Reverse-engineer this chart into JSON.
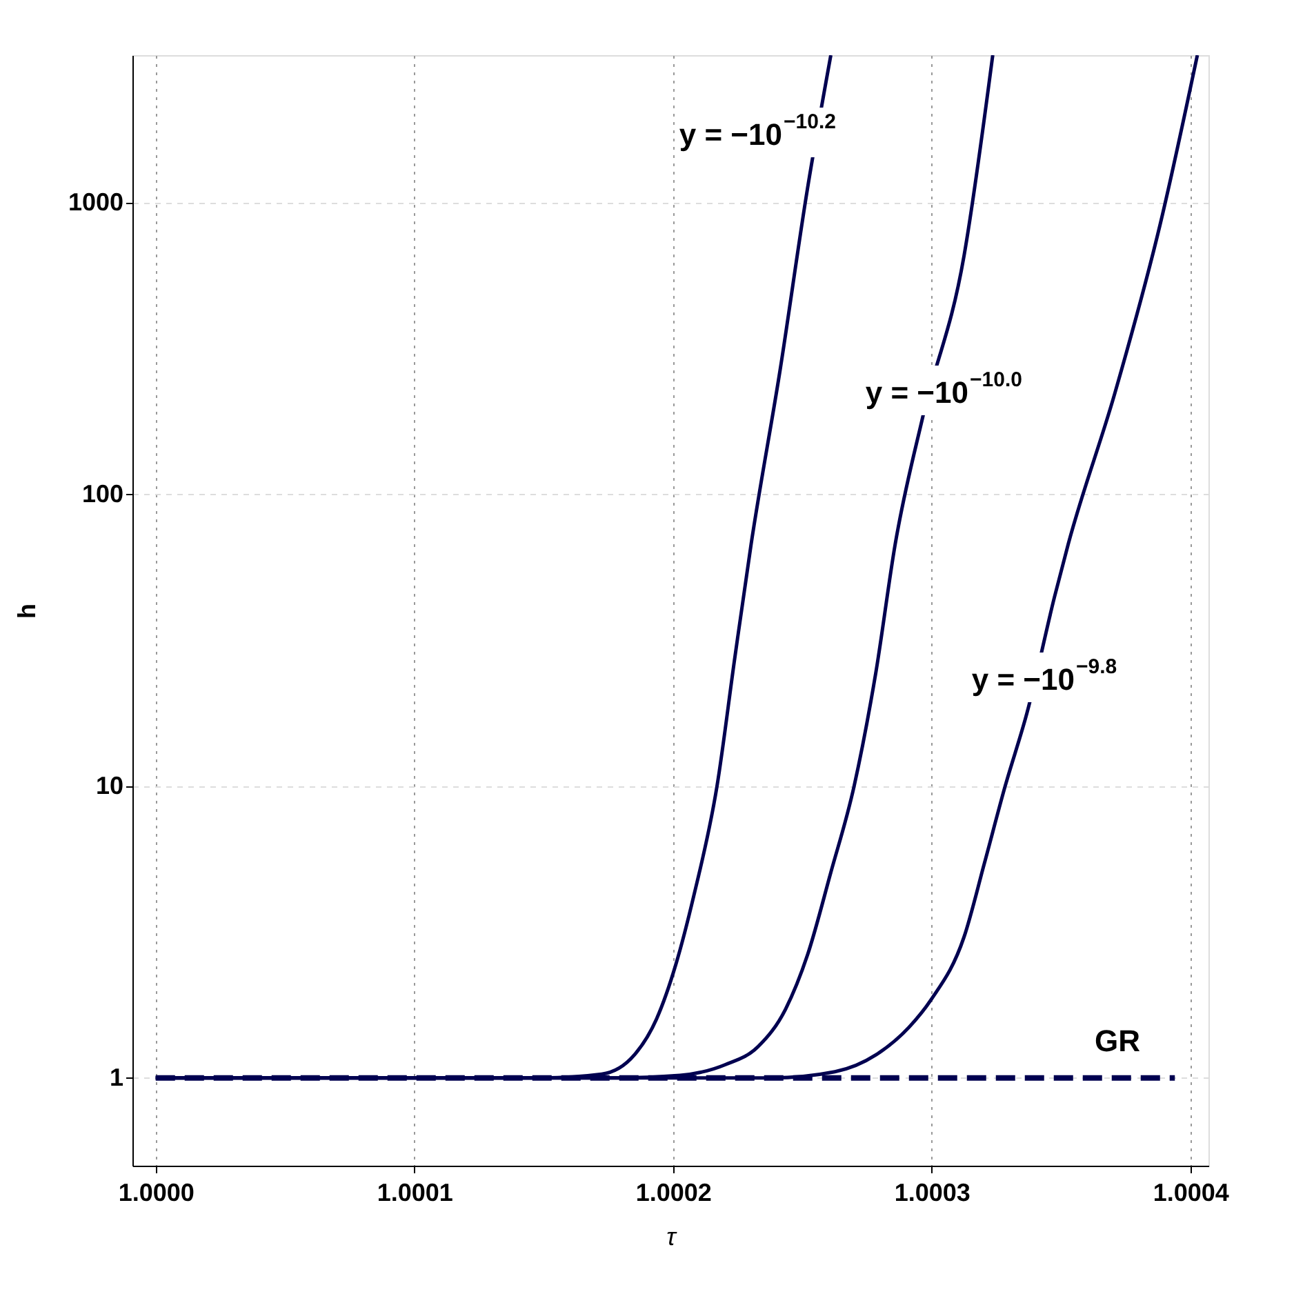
{
  "chart_data": {
    "type": "line",
    "xlabel": "τ",
    "ylabel": "h",
    "log": "y",
    "grid": true,
    "line_style": "solid",
    "xlim": [
      0.999991,
      1.000407
    ],
    "ylim": [
      0.5,
      3200
    ],
    "xticks": [
      {
        "value": 1.0,
        "label": "1.0000"
      },
      {
        "value": 1.0001,
        "label": "1.0001"
      },
      {
        "value": 1.0002,
        "label": "1.0002"
      },
      {
        "value": 1.0003,
        "label": "1.0003"
      },
      {
        "value": 1.0004,
        "label": "1.0004"
      }
    ],
    "yticks": [
      1,
      10,
      100,
      1000
    ],
    "series": [
      {
        "color": "#000050",
        "x": [
          1.0,
          1.00014,
          1.0001496,
          1.0001724,
          1.0001851,
          1.0001936,
          1.0002011,
          1.000208,
          1.000217,
          1.0002239,
          1.0002302,
          1.0002414,
          1.000252,
          1.000261
        ],
        "values": [
          1,
          1,
          1.0,
          1.03,
          1.2,
          1.59,
          2.45,
          4.2,
          10,
          27.6,
          67.6,
          267,
          1120,
          3200
        ]
      },
      {
        "color": "#000050",
        "x": [
          1.0,
          1.00018,
          1.0002027,
          1.0002202,
          1.0002329,
          1.0002435,
          1.000252,
          1.000261,
          1.00027,
          1.0002785,
          1.0002859,
          1.0002966,
          1.0003125,
          1.0003236
        ],
        "values": [
          1,
          1,
          1.02,
          1.11,
          1.28,
          1.72,
          2.64,
          5.06,
          10,
          24.8,
          67.6,
          185,
          657,
          3200
        ]
      },
      {
        "color": "#000050",
        "x": [
          1.0,
          1.00022,
          1.0002382,
          1.0002626,
          1.0002785,
          1.0002912,
          1.0002997,
          1.0003125,
          1.0003204,
          1.0003284,
          1.0003369,
          1.0003475,
          1.0003528,
          1.0003708,
          1.0003883,
          1.0004027
        ],
        "values": [
          1,
          1,
          1.0,
          1.05,
          1.2,
          1.49,
          1.85,
          3.04,
          5.45,
          10,
          17.9,
          44.6,
          67.6,
          222,
          840,
          3200
        ]
      },
      {
        "color": "#000050",
        "line_style": "dashed",
        "x": [
          1.0,
          1.000394
        ],
        "values": [
          1,
          1
        ]
      }
    ],
    "annotations": [
      "y = −10$^{−10.2}$",
      "y = −10$^{−10.0}$",
      "y = −10$^{−9.8}$",
      "GR"
    ]
  }
}
